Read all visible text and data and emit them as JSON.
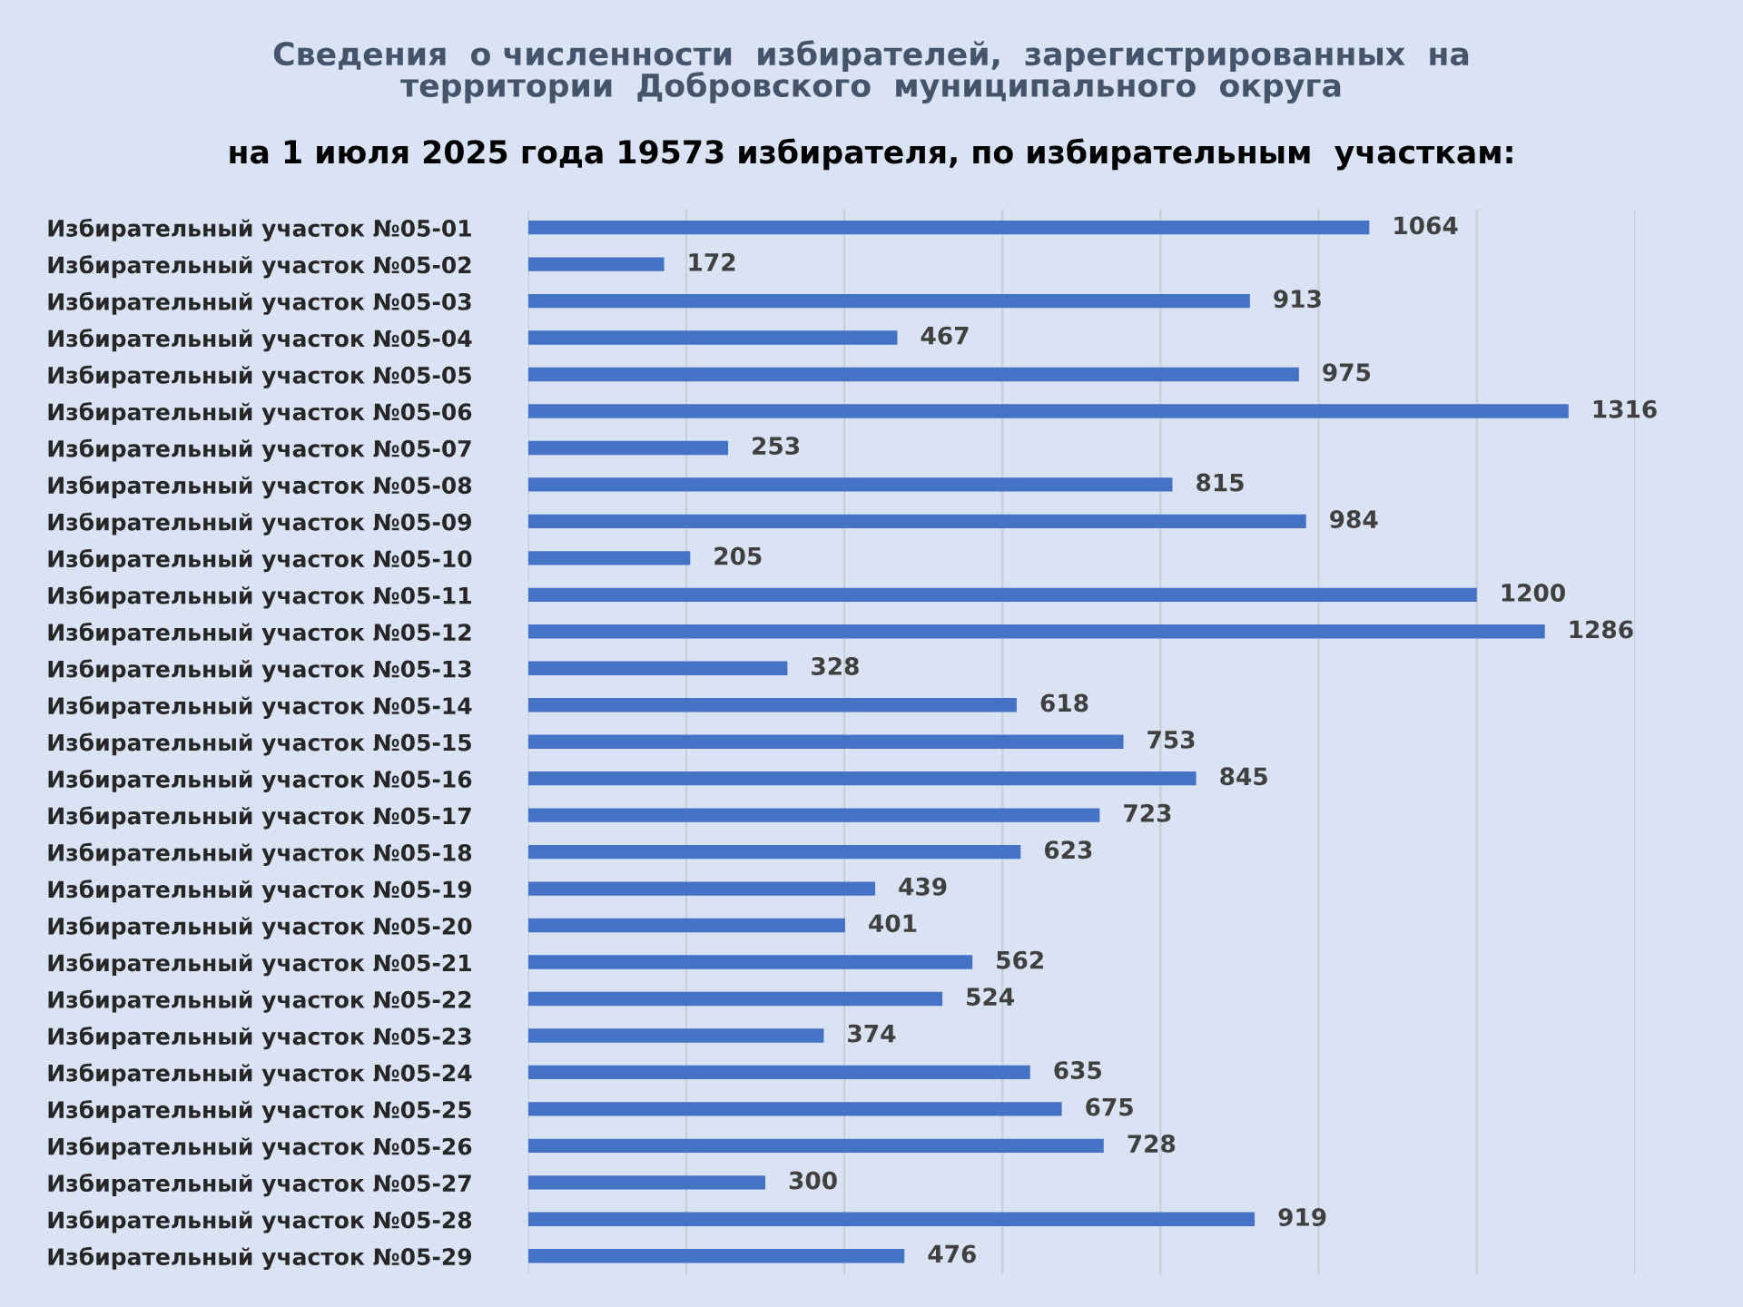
{
  "chart_data": {
    "type": "bar",
    "orientation": "horizontal",
    "title": "Сведения  о численности  избирателей,  зарегистрированных  на\nтерритории  Добровского  муниципального  округа",
    "subtitle": "на 1 июля 2025 года 19573 избирателя, по избирательным  участкам:",
    "categories": [
      "Избирательный участок №05-01",
      "Избирательный участок №05-02",
      "Избирательный участок №05-03",
      "Избирательный участок №05-04",
      "Избирательный участок №05-05",
      "Избирательный участок №05-06",
      "Избирательный участок №05-07",
      "Избирательный участок №05-08",
      "Избирательный участок №05-09",
      "Избирательный участок №05-10",
      "Избирательный участок №05-11",
      "Избирательный участок №05-12",
      "Избирательный участок №05-13",
      "Избирательный участок №05-14",
      "Избирательный участок №05-15",
      "Избирательный участок №05-16",
      "Избирательный участок №05-17",
      "Избирательный участок №05-18",
      "Избирательный участок №05-19",
      "Избирательный участок №05-20",
      "Избирательный участок №05-21",
      "Избирательный участок №05-22",
      "Избирательный участок №05-23",
      "Избирательный участок №05-24",
      "Избирательный участок №05-25",
      "Избирательный участок №05-26",
      "Избирательный участок №05-27",
      "Избирательный участок №05-28",
      "Избирательный участок №05-29"
    ],
    "values": [
      1064,
      172,
      913,
      467,
      975,
      1316,
      253,
      815,
      984,
      205,
      1200,
      1286,
      328,
      618,
      753,
      845,
      723,
      623,
      439,
      401,
      562,
      524,
      374,
      635,
      675,
      728,
      300,
      919,
      476
    ],
    "color": "#4472c4",
    "data_labels": true,
    "xlim": [
      0,
      1400
    ],
    "xticks": [
      {
        "value": 0,
        "label": null
      },
      {
        "value": 200,
        "label": null
      },
      {
        "value": 400,
        "label": null
      },
      {
        "value": 600,
        "label": null
      },
      {
        "value": 800,
        "label": null
      },
      {
        "value": 1000,
        "label": null
      },
      {
        "value": 1200,
        "label": null
      },
      {
        "value": 1400,
        "label": null
      }
    ],
    "grid": "x",
    "tick_labels": "y"
  }
}
